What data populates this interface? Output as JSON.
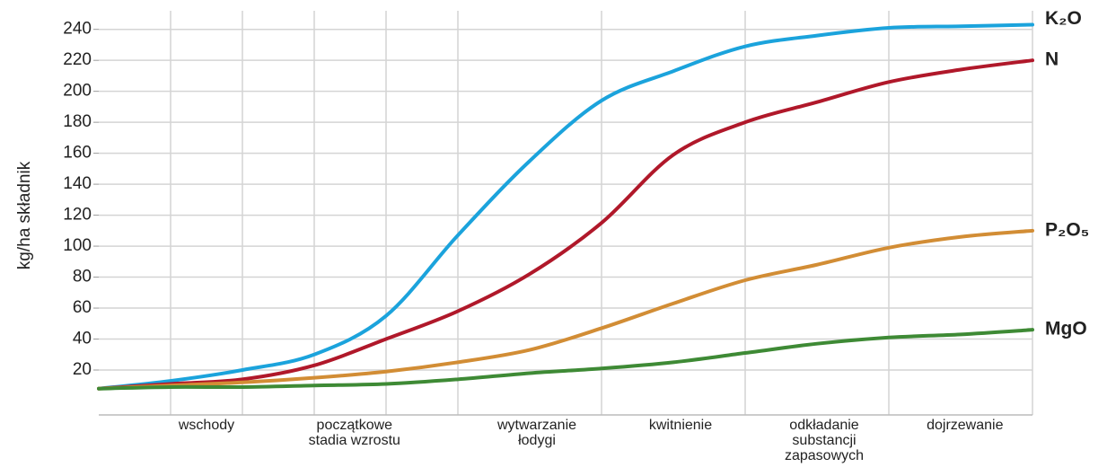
{
  "chart_data": {
    "type": "line",
    "y_label": "kg/ha składnik",
    "x": [
      0,
      1,
      2,
      3,
      4,
      5,
      6,
      7,
      8,
      9,
      10,
      11,
      12,
      13
    ],
    "xlim": [
      0,
      13
    ],
    "xticks": [
      {
        "value": 1.5,
        "label": "wschody"
      },
      {
        "value": 3.56,
        "label": "początkowe\nstadia wzrostu"
      },
      {
        "value": 6.1,
        "label": "wytwarzanie\nłodygi"
      },
      {
        "value": 8.1,
        "label": "kwitnienie"
      },
      {
        "value": 10.1,
        "label": "odkładanie\nsubstancji\nzapasowych"
      },
      {
        "value": 12.06,
        "label": "dojrzewanie"
      }
    ],
    "xgrid": [
      1,
      2,
      3,
      4,
      5,
      7,
      9,
      11,
      13
    ],
    "ylim": [
      -9,
      252
    ],
    "yticks": [
      20,
      40,
      60,
      80,
      100,
      120,
      140,
      160,
      180,
      200,
      220,
      240
    ],
    "grid": true,
    "series": [
      {
        "name": "K₂O",
        "color": "#1ba3dc",
        "values": [
          8,
          13,
          20,
          30,
          55,
          107,
          155,
          194,
          213,
          229,
          236,
          241,
          242,
          243
        ]
      },
      {
        "name": "N",
        "color": "#b0182a",
        "values": [
          8,
          11,
          14,
          23,
          40,
          58,
          82,
          115,
          159,
          180,
          193,
          206,
          214,
          220
        ]
      },
      {
        "name": "P₂O₅",
        "color": "#d28d35",
        "values": [
          8,
          10,
          12,
          15,
          19,
          25,
          33,
          47,
          63,
          78,
          88,
          99,
          106,
          110
        ]
      },
      {
        "name": "MgO",
        "color": "#3e8a35",
        "values": [
          8,
          9,
          9,
          10,
          11,
          14,
          18,
          21,
          25,
          31,
          37,
          41,
          43,
          46
        ]
      }
    ]
  }
}
